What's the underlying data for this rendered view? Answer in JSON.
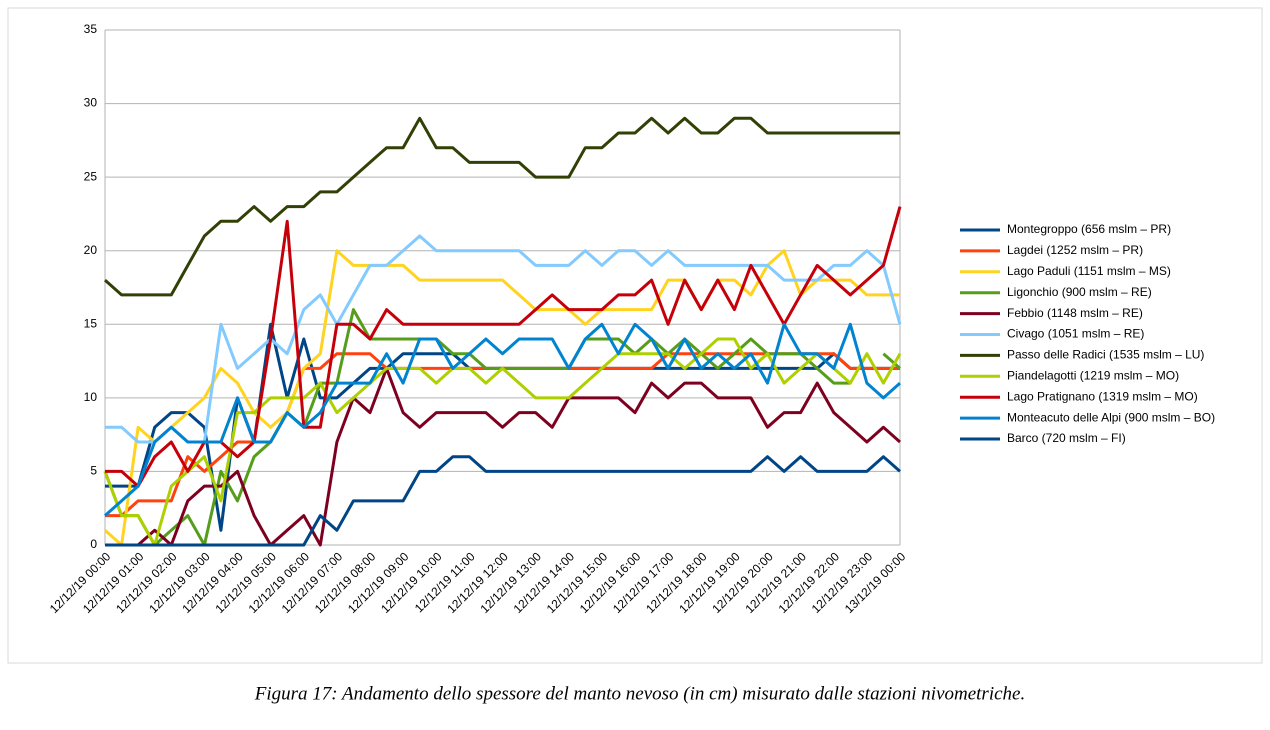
{
  "chart_data": {
    "type": "line",
    "caption": "Figura 17: Andamento dello spessore del manto nevoso (in cm) misurato dalle stazioni nivometriche.",
    "categories": [
      "12/12/19 00:00",
      null,
      "12/12/19 01:00",
      null,
      "12/12/19 02:00",
      null,
      "12/12/19 03:00",
      null,
      "12/12/19 04:00",
      null,
      "12/12/19 05:00",
      null,
      "12/12/19 06:00",
      null,
      "12/12/19 07:00",
      null,
      "12/12/19 08:00",
      null,
      "12/12/19 09:00",
      null,
      "12/12/19 10:00",
      null,
      "12/12/19 11:00",
      null,
      "12/12/19 12:00",
      null,
      "12/12/19 13:00",
      null,
      "12/12/19 14:00",
      null,
      "12/12/19 15:00",
      null,
      "12/12/19 16:00",
      null,
      "12/12/19 17:00",
      null,
      "12/12/19 18:00",
      null,
      "12/12/19 19:00",
      null,
      "12/12/19 20:00",
      null,
      "12/12/19 21:00",
      null,
      "12/12/19 22:00",
      null,
      "12/12/19 23:00",
      null,
      "13/12/19 00:00"
    ],
    "ylim": [
      0,
      35
    ],
    "yticks": [
      0,
      5,
      10,
      15,
      20,
      25,
      30,
      35
    ],
    "grid": true,
    "legend": "right",
    "series": [
      {
        "name": "Montegroppo (656 mslm – PR)",
        "color": "#004586",
        "values": [
          4,
          4,
          4,
          8,
          9,
          9,
          8,
          1,
          10,
          7,
          15,
          10,
          14,
          10,
          10,
          11,
          12,
          12,
          13,
          13,
          13,
          13,
          12,
          12,
          12,
          12,
          12,
          12,
          12,
          12,
          12,
          12,
          12,
          12,
          12,
          12,
          12,
          12,
          12,
          12,
          12,
          12,
          12,
          12,
          13,
          12,
          12,
          12,
          12
        ]
      },
      {
        "name": "Lagdei (1252 mslm – PR)",
        "color": "#ff420e",
        "values": [
          2,
          2,
          3,
          3,
          3,
          6,
          5,
          6,
          7,
          7,
          7,
          9,
          12,
          12,
          13,
          13,
          13,
          12,
          12,
          12,
          12,
          12,
          12,
          12,
          12,
          12,
          12,
          12,
          12,
          12,
          12,
          12,
          12,
          12,
          13,
          13,
          13,
          13,
          13,
          13,
          13,
          13,
          13,
          13,
          13,
          12,
          12,
          12,
          12
        ]
      },
      {
        "name": "Lago Paduli (1151 mslm – MS)",
        "color": "#ffd320",
        "values": [
          1,
          0,
          8,
          7,
          8,
          9,
          10,
          12,
          11,
          9,
          8,
          9,
          12,
          13,
          20,
          19,
          19,
          19,
          19,
          18,
          18,
          18,
          18,
          18,
          18,
          17,
          16,
          16,
          16,
          15,
          16,
          16,
          16,
          16,
          18,
          18,
          16,
          18,
          18,
          17,
          19,
          20,
          17,
          18,
          18,
          18,
          17,
          17,
          17
        ]
      },
      {
        "name": "Ligonchio (900 mslm – RE)",
        "color": "#579d1c",
        "values": [
          5,
          2,
          2,
          0,
          1,
          2,
          0,
          5,
          3,
          6,
          7,
          9,
          8,
          11,
          11,
          16,
          14,
          14,
          14,
          14,
          14,
          13,
          13,
          12,
          12,
          12,
          12,
          12,
          12,
          14,
          14,
          14,
          13,
          14,
          13,
          14,
          13,
          12,
          13,
          14,
          13,
          13,
          13,
          12,
          11,
          11,
          null,
          13,
          12
        ]
      },
      {
        "name": "Febbio (1148 mslm – RE)",
        "color": "#7e0021",
        "values": [
          0,
          0,
          0,
          1,
          0,
          3,
          4,
          4,
          5,
          2,
          0,
          1,
          2,
          0,
          7,
          10,
          9,
          12,
          9,
          8,
          9,
          9,
          9,
          9,
          8,
          9,
          9,
          8,
          10,
          10,
          10,
          10,
          9,
          11,
          10,
          11,
          11,
          10,
          10,
          10,
          8,
          9,
          9,
          11,
          9,
          8,
          7,
          8,
          7
        ]
      },
      {
        "name": "Civago (1051 mslm – RE)",
        "color": "#83caff",
        "values": [
          8,
          8,
          7,
          7,
          8,
          7,
          7,
          15,
          12,
          13,
          14,
          13,
          16,
          17,
          15,
          17,
          19,
          19,
          20,
          21,
          20,
          20,
          20,
          20,
          20,
          20,
          19,
          19,
          19,
          20,
          19,
          20,
          20,
          19,
          20,
          19,
          19,
          19,
          19,
          19,
          19,
          18,
          18,
          18,
          19,
          19,
          20,
          19,
          15
        ]
      },
      {
        "name": "Passo delle Radici (1535 mslm – LU)",
        "color": "#314004",
        "values": [
          18,
          17,
          17,
          17,
          17,
          19,
          21,
          22,
          22,
          23,
          22,
          23,
          23,
          24,
          24,
          25,
          26,
          27,
          27,
          29,
          27,
          27,
          26,
          26,
          26,
          26,
          25,
          25,
          25,
          27,
          27,
          28,
          28,
          29,
          28,
          29,
          28,
          28,
          29,
          29,
          28,
          28,
          28,
          28,
          28,
          28,
          28,
          28,
          28
        ]
      },
      {
        "name": "Piandelagotti (1219 mslm – MO)",
        "color": "#aecf00",
        "values": [
          5,
          2,
          2,
          0,
          4,
          5,
          6,
          3,
          9,
          9,
          10,
          10,
          10,
          11,
          9,
          10,
          11,
          12,
          12,
          12,
          11,
          12,
          12,
          11,
          12,
          11,
          10,
          10,
          10,
          11,
          12,
          13,
          13,
          13,
          13,
          12,
          13,
          14,
          14,
          12,
          13,
          11,
          12,
          13,
          12,
          11,
          13,
          11,
          13
        ]
      },
      {
        "name": "Lago Pratignano (1319 mslm – MO)",
        "color": "#c5000b",
        "values": [
          5,
          5,
          4,
          6,
          7,
          5,
          7,
          7,
          6,
          7,
          14,
          22,
          8,
          8,
          15,
          15,
          14,
          16,
          15,
          15,
          15,
          15,
          15,
          15,
          15,
          15,
          16,
          17,
          16,
          16,
          16,
          17,
          17,
          18,
          15,
          18,
          16,
          18,
          16,
          19,
          17,
          15,
          17,
          19,
          18,
          17,
          18,
          19,
          23
        ]
      },
      {
        "name": "Monteacuto delle Alpi (900 mslm – BO)",
        "color": "#0084d1",
        "values": [
          2,
          3,
          4,
          7,
          8,
          7,
          7,
          7,
          10,
          7,
          7,
          9,
          8,
          9,
          11,
          11,
          11,
          13,
          11,
          14,
          14,
          12,
          13,
          14,
          13,
          14,
          14,
          14,
          12,
          14,
          15,
          13,
          15,
          14,
          12,
          14,
          12,
          13,
          12,
          13,
          11,
          15,
          13,
          13,
          12,
          15,
          11,
          10,
          11
        ]
      },
      {
        "name": "Barco (720 mslm – FI)",
        "color": "#004586",
        "values": [
          0,
          0,
          0,
          0,
          0,
          0,
          0,
          0,
          0,
          0,
          0,
          0,
          0,
          2,
          1,
          3,
          3,
          3,
          3,
          5,
          5,
          6,
          6,
          5,
          5,
          5,
          5,
          5,
          5,
          5,
          5,
          5,
          5,
          5,
          5,
          5,
          5,
          5,
          5,
          5,
          6,
          5,
          6,
          5,
          5,
          5,
          5,
          6,
          5
        ]
      }
    ]
  }
}
